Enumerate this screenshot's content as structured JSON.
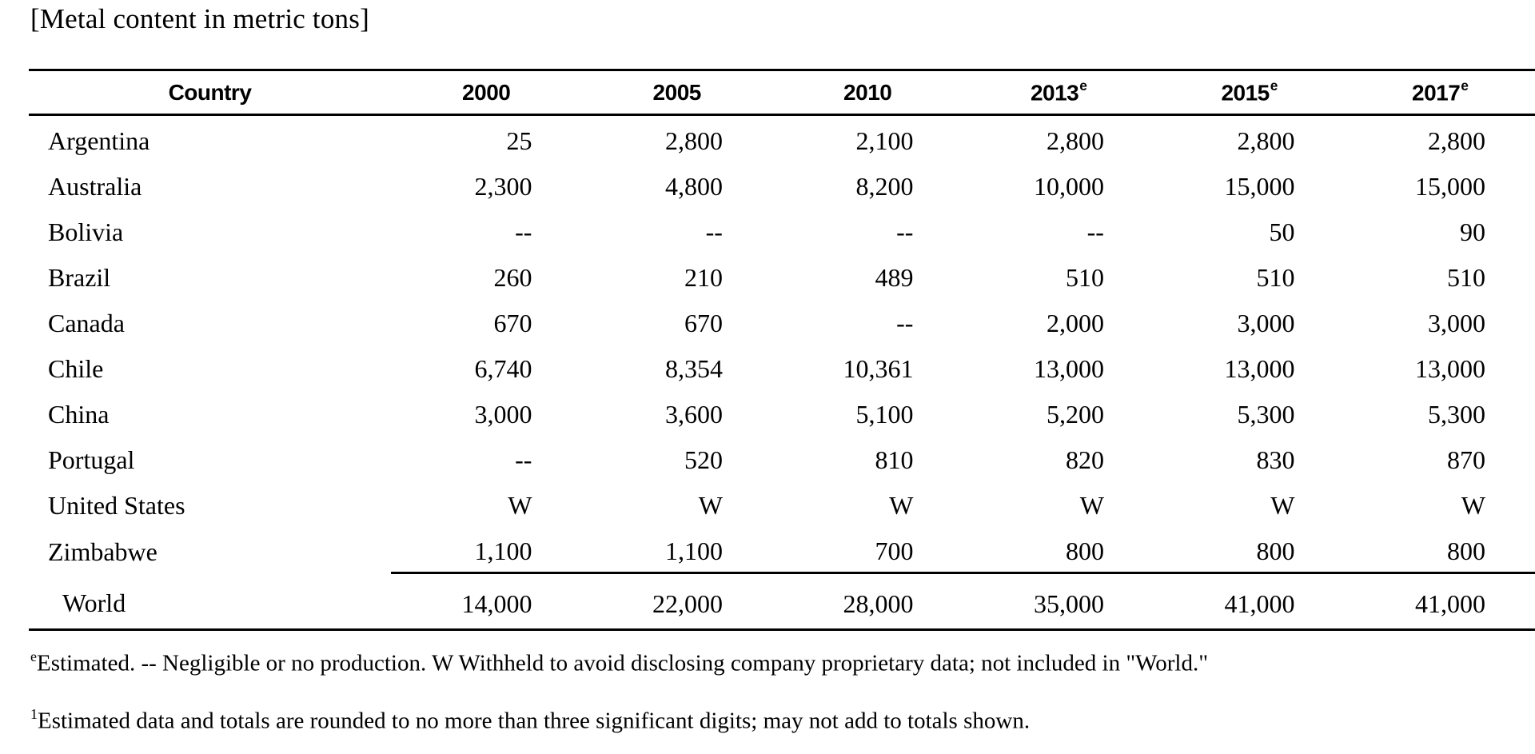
{
  "title": "[Metal content in metric tons]",
  "table": {
    "country_header": "Country",
    "year_headers": [
      {
        "label": "2000",
        "sup": ""
      },
      {
        "label": "2005",
        "sup": ""
      },
      {
        "label": "2010",
        "sup": ""
      },
      {
        "label": "2013",
        "sup": "e"
      },
      {
        "label": "2015",
        "sup": "e"
      },
      {
        "label": "2017",
        "sup": "e"
      }
    ],
    "rows": [
      {
        "country": "Argentina",
        "values": [
          "25",
          "2,800",
          "2,100",
          "2,800",
          "2,800",
          "2,800"
        ]
      },
      {
        "country": "Australia",
        "values": [
          "2,300",
          "4,800",
          "8,200",
          "10,000",
          "15,000",
          "15,000"
        ]
      },
      {
        "country": "Bolivia",
        "values": [
          "--",
          "--",
          "--",
          "--",
          "50",
          "90"
        ]
      },
      {
        "country": "Brazil",
        "values": [
          "260",
          "210",
          "489",
          "510",
          "510",
          "510"
        ]
      },
      {
        "country": "Canada",
        "values": [
          "670",
          "670",
          "--",
          "2,000",
          "3,000",
          "3,000"
        ]
      },
      {
        "country": "Chile",
        "values": [
          "6,740",
          "8,354",
          "10,361",
          "13,000",
          "13,000",
          "13,000"
        ]
      },
      {
        "country": "China",
        "values": [
          "3,000",
          "3,600",
          "5,100",
          "5,200",
          "5,300",
          "5,300"
        ]
      },
      {
        "country": "Portugal",
        "values": [
          "--",
          "520",
          "810",
          "820",
          "830",
          "870"
        ]
      },
      {
        "country": "United States",
        "values": [
          "W",
          "W",
          "W",
          "W",
          "W",
          "W"
        ]
      },
      {
        "country": "Zimbabwe",
        "values": [
          "1,100",
          "1,100",
          "700",
          "800",
          "800",
          "800"
        ]
      }
    ],
    "total_row": {
      "country": "World",
      "values": [
        "14,000",
        "22,000",
        "28,000",
        "35,000",
        "41,000",
        "41,000"
      ]
    }
  },
  "footnotes": [
    {
      "sup": "e",
      "text": "Estimated. -- Negligible or no production. W Withheld to avoid disclosing company proprietary data; not included in \"World.\""
    },
    {
      "sup": "1",
      "text": "Estimated data and totals are rounded to no more than three significant digits; may not add to totals shown."
    }
  ]
}
